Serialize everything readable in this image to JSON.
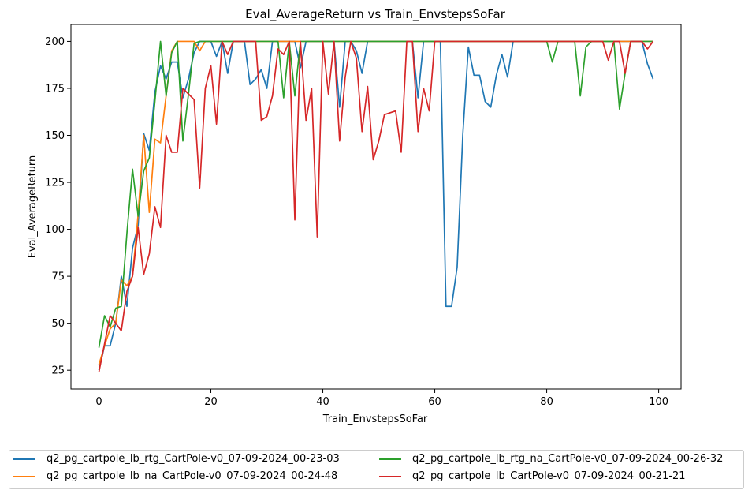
{
  "chart_data": {
    "type": "line",
    "title": "Eval_AverageReturn vs Train_EnvstepsSoFar",
    "xlabel": "Train_EnvstepsSoFar",
    "ylabel": "Eval_AverageReturn",
    "xlim": [
      -5,
      104
    ],
    "ylim": [
      15,
      209
    ],
    "xticks": [
      0,
      20,
      40,
      60,
      80,
      100
    ],
    "yticks": [
      25,
      50,
      75,
      100,
      125,
      150,
      175,
      200
    ],
    "grid": false,
    "legend_position": "bottom, outside plot, 2 columns",
    "series": [
      {
        "name": "q2_pg_cartpole_lb_rtg_CartPole-v0_07-09-2024_00-23-03",
        "color": "#1f77b4",
        "values": [
          25,
          38,
          38,
          50,
          75,
          59,
          90,
          102,
          151,
          142,
          173,
          187,
          180,
          189,
          189,
          170,
          180,
          194,
          200,
          200,
          200,
          192,
          200,
          183,
          200,
          200,
          200,
          177,
          180,
          185,
          175,
          200,
          200,
          200,
          200,
          200,
          186,
          200,
          200,
          200,
          200,
          200,
          200,
          165,
          200,
          200,
          195,
          183,
          200,
          200,
          200,
          200,
          200,
          200,
          200,
          200,
          200,
          170,
          200,
          200,
          200,
          200,
          59,
          59,
          80,
          150,
          197,
          182,
          182,
          168,
          165,
          182,
          193,
          181,
          200,
          200,
          200,
          200,
          200,
          200,
          200,
          200,
          200,
          200,
          200,
          200,
          200,
          200,
          200,
          200,
          200,
          200,
          200,
          200,
          200,
          200,
          200,
          200,
          188,
          180
        ]
      },
      {
        "name": "q2_pg_cartpole_lb_na_CartPole-v0_07-09-2024_00-24-48",
        "color": "#ff7f0e",
        "values": [
          28,
          38,
          47,
          50,
          73,
          70,
          75,
          108,
          150,
          109,
          148,
          146,
          171,
          195,
          200,
          200,
          200,
          200,
          195,
          200,
          200,
          200,
          200,
          200,
          200,
          200,
          200,
          200,
          200,
          200,
          200,
          200,
          200,
          200,
          200,
          200,
          200,
          200,
          200,
          200,
          200,
          200,
          200,
          200,
          200,
          200,
          200,
          200,
          200,
          200,
          200,
          200,
          200,
          200,
          200,
          200,
          200,
          200,
          200,
          200,
          200,
          200,
          200,
          200,
          200,
          200,
          200,
          200,
          200,
          200,
          200,
          200,
          200,
          200,
          200,
          200,
          200,
          200,
          200,
          200,
          200,
          200,
          200,
          200,
          200,
          200,
          200,
          200,
          200,
          200,
          200,
          200,
          200,
          200,
          200,
          200,
          200,
          200,
          200,
          200
        ]
      },
      {
        "name": "q2_pg_cartpole_lb_rtg_na_CartPole-v0_07-09-2024_00-26-32",
        "color": "#2ca02c",
        "values": [
          37,
          54,
          48,
          58,
          59,
          98,
          132,
          107,
          131,
          138,
          168,
          200,
          171,
          194,
          200,
          147,
          172,
          199,
          200,
          200,
          200,
          200,
          200,
          200,
          200,
          200,
          200,
          200,
          200,
          200,
          200,
          200,
          200,
          170,
          200,
          171,
          200,
          200,
          200,
          200,
          200,
          200,
          200,
          200,
          200,
          200,
          200,
          200,
          200,
          200,
          200,
          200,
          200,
          200,
          200,
          200,
          200,
          200,
          200,
          200,
          200,
          200,
          200,
          200,
          200,
          200,
          200,
          200,
          200,
          200,
          200,
          200,
          200,
          200,
          200,
          200,
          200,
          200,
          200,
          200,
          200,
          189,
          200,
          200,
          200,
          200,
          171,
          197,
          200,
          200,
          200,
          200,
          200,
          164,
          183,
          200,
          200,
          200,
          200,
          200
        ]
      },
      {
        "name": "q2_pg_cartpole_lb_CartPole-v0_07-09-2024_00-21-21",
        "color": "#d62728",
        "values": [
          24,
          39,
          54,
          50,
          46,
          67,
          75,
          101,
          76,
          87,
          112,
          101,
          150,
          141,
          141,
          175,
          172,
          169,
          122,
          175,
          187,
          156,
          200,
          193,
          200,
          200,
          200,
          200,
          200,
          158,
          160,
          171,
          196,
          193,
          200,
          105,
          200,
          158,
          175,
          96,
          200,
          172,
          200,
          147,
          181,
          200,
          191,
          152,
          176,
          137,
          147,
          161,
          162,
          163,
          141,
          200,
          200,
          152,
          175,
          163,
          200,
          200,
          200,
          200,
          200,
          200,
          200,
          200,
          200,
          200,
          200,
          200,
          200,
          200,
          200,
          200,
          200,
          200,
          200,
          200,
          200,
          200,
          200,
          200,
          200,
          200,
          200,
          200,
          200,
          200,
          200,
          190,
          200,
          200,
          183,
          200,
          200,
          200,
          196,
          200
        ]
      }
    ]
  }
}
